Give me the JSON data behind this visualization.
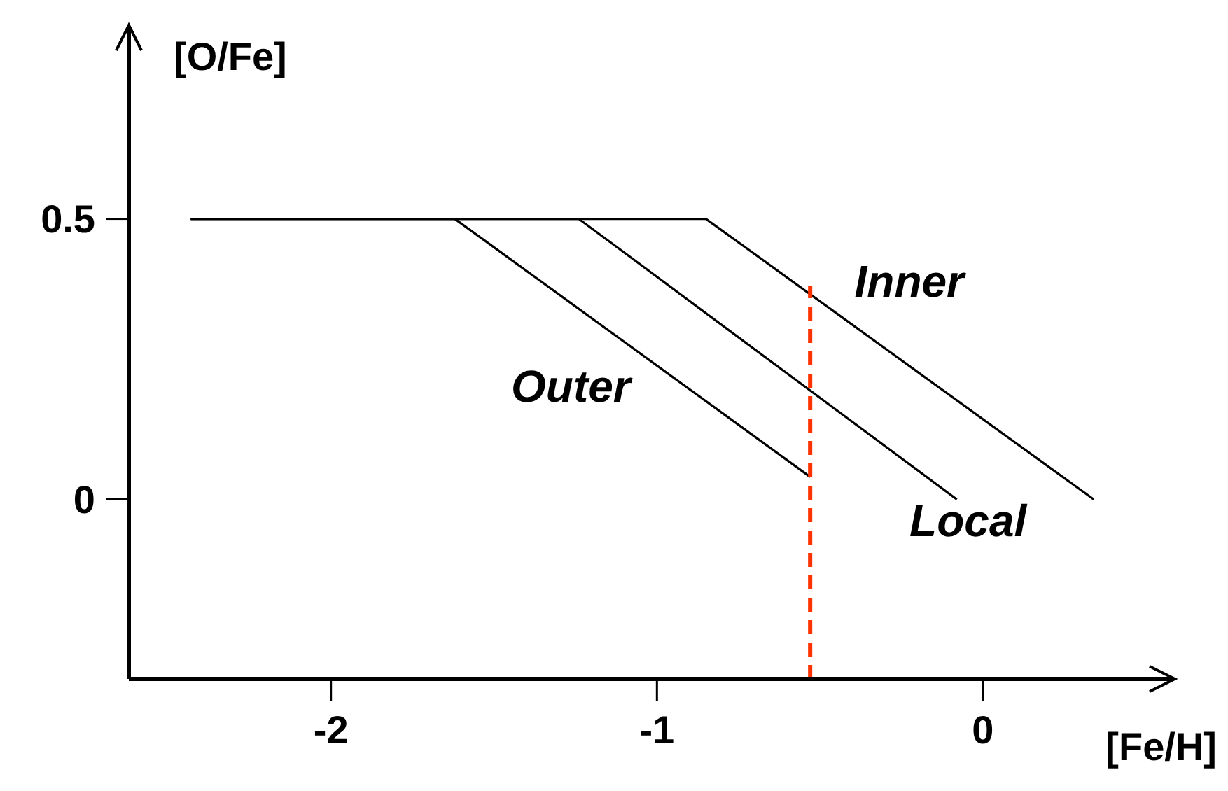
{
  "chart_data": {
    "type": "line",
    "xlabel": "[Fe/H]",
    "ylabel": "[O/Fe]",
    "xlim": [
      -2.62,
      0.58
    ],
    "ylim": [
      -0.32,
      0.84
    ],
    "xticks": [
      -2,
      -1,
      0
    ],
    "yticks": [
      0,
      0.5
    ],
    "grid": false,
    "legend": false,
    "marker": "none",
    "series": [
      {
        "name": "Outer",
        "color": "#000000",
        "x": [
          -2.43,
          -1.62,
          -0.53
        ],
        "values": [
          0.5,
          0.5,
          0.04
        ]
      },
      {
        "name": "Local",
        "color": "#000000",
        "x": [
          -2.43,
          -1.24,
          -0.08
        ],
        "values": [
          0.5,
          0.5,
          0
        ]
      },
      {
        "name": "Inner",
        "color": "#000000",
        "x": [
          -2.43,
          -0.85,
          0.34
        ],
        "values": [
          0.5,
          0.5,
          0
        ]
      },
      {
        "color": "#ff3300",
        "line_style": "dashed",
        "x": [
          -0.53,
          -0.53
        ],
        "values": [
          -0.32,
          0.38
        ]
      }
    ]
  }
}
